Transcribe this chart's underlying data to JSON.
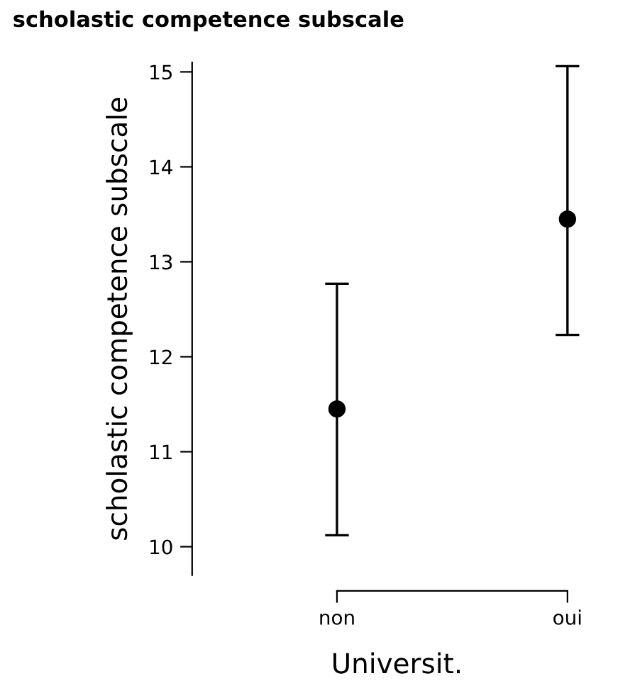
{
  "chart_data": {
    "type": "scatter",
    "title": "scholastic competence subscale",
    "xlabel": "Universit.",
    "ylabel": "scholastic competence subscale",
    "categories": [
      "non",
      "oui"
    ],
    "series": [
      {
        "color": "#000000",
        "values": [
          11.45,
          13.45
        ],
        "errors": [
          [
            10.12,
            12.77
          ],
          [
            12.23,
            15.06
          ]
        ]
      }
    ],
    "ylim": [
      9.7,
      15.1
    ],
    "yticks": [
      10,
      11,
      12,
      13,
      14,
      15
    ],
    "marker": "circle",
    "grid": false,
    "legend": false
  }
}
